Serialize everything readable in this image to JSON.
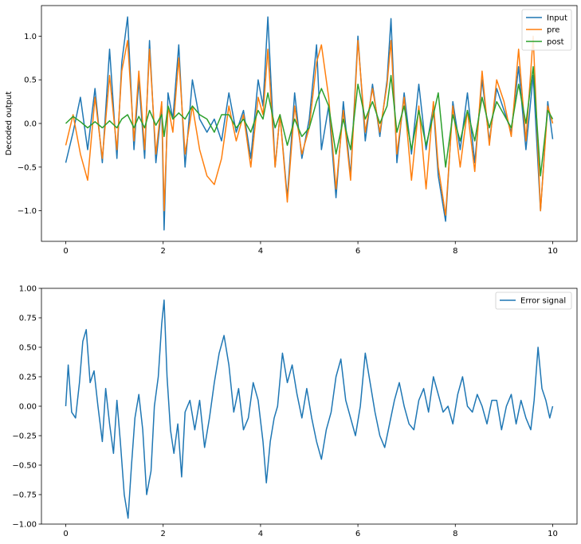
{
  "chart_data": [
    {
      "type": "line",
      "title": "",
      "xlabel": "",
      "ylabel": "Decoded output",
      "xlim": [
        -0.5,
        10.5
      ],
      "ylim": [
        -1.35,
        1.35
      ],
      "xticks": [
        0,
        2,
        4,
        6,
        8,
        10
      ],
      "yticks": [
        -1.0,
        -0.5,
        0.0,
        0.5,
        1.0
      ],
      "xticklabels": [
        "0",
        "2",
        "4",
        "6",
        "8",
        "10"
      ],
      "yticklabels": [
        "−1.0",
        "−0.5",
        "0.0",
        "0.5",
        "1.0"
      ],
      "grid": false,
      "legend_position": "upper right",
      "series": [
        {
          "name": "Input",
          "color": "#1f77b4",
          "x": [
            0,
            0.15,
            0.3,
            0.45,
            0.6,
            0.75,
            0.9,
            1.05,
            1.15,
            1.27,
            1.4,
            1.5,
            1.62,
            1.72,
            1.85,
            1.97,
            2.02,
            2.1,
            2.2,
            2.32,
            2.45,
            2.6,
            2.75,
            2.9,
            3.05,
            3.2,
            3.35,
            3.5,
            3.65,
            3.8,
            3.95,
            4.05,
            4.15,
            4.3,
            4.4,
            4.55,
            4.7,
            4.85,
            5.0,
            5.15,
            5.25,
            5.4,
            5.55,
            5.7,
            5.85,
            6.0,
            6.15,
            6.3,
            6.45,
            6.6,
            6.68,
            6.8,
            6.95,
            7.1,
            7.25,
            7.4,
            7.55,
            7.65,
            7.8,
            7.95,
            8.1,
            8.25,
            8.4,
            8.55,
            8.7,
            8.85,
            9.0,
            9.15,
            9.3,
            9.45,
            9.6,
            9.75,
            9.9,
            10.0
          ],
          "y": [
            -0.45,
            -0.1,
            0.3,
            -0.3,
            0.4,
            -0.45,
            0.85,
            -0.4,
            0.7,
            1.22,
            -0.3,
            0.5,
            -0.4,
            0.95,
            -0.45,
            0.2,
            -1.22,
            0.35,
            0.05,
            0.9,
            -0.5,
            0.5,
            0.05,
            -0.1,
            0.05,
            -0.2,
            0.35,
            -0.1,
            0.15,
            -0.4,
            0.5,
            0.2,
            1.22,
            -0.5,
            0.1,
            -0.85,
            0.35,
            -0.4,
            0.05,
            0.9,
            -0.3,
            0.2,
            -0.85,
            0.25,
            -0.6,
            1.0,
            -0.2,
            0.45,
            -0.15,
            0.5,
            1.2,
            -0.45,
            0.35,
            -0.35,
            0.45,
            -0.3,
            0.2,
            -0.6,
            -1.12,
            0.25,
            -0.3,
            0.35,
            -0.45,
            0.5,
            -0.2,
            0.4,
            0.15,
            -0.1,
            0.65,
            -0.3,
            0.55,
            -1.0,
            0.25,
            -0.18
          ]
        },
        {
          "name": "pre",
          "color": "#ff7f0e",
          "x": [
            0,
            0.15,
            0.3,
            0.45,
            0.6,
            0.75,
            0.9,
            1.05,
            1.15,
            1.27,
            1.4,
            1.5,
            1.62,
            1.72,
            1.85,
            1.97,
            2.02,
            2.1,
            2.2,
            2.32,
            2.45,
            2.6,
            2.75,
            2.9,
            3.05,
            3.2,
            3.35,
            3.5,
            3.65,
            3.8,
            3.95,
            4.05,
            4.15,
            4.3,
            4.4,
            4.55,
            4.7,
            4.85,
            5.0,
            5.15,
            5.25,
            5.4,
            5.55,
            5.7,
            5.85,
            6.0,
            6.15,
            6.3,
            6.45,
            6.6,
            6.68,
            6.8,
            6.95,
            7.1,
            7.25,
            7.4,
            7.55,
            7.65,
            7.8,
            7.95,
            8.1,
            8.25,
            8.4,
            8.55,
            8.7,
            8.85,
            9.0,
            9.15,
            9.3,
            9.45,
            9.6,
            9.75,
            9.9,
            10.0
          ],
          "y": [
            -0.25,
            0.1,
            -0.35,
            -0.65,
            0.3,
            -0.4,
            0.55,
            -0.3,
            0.6,
            0.95,
            -0.2,
            0.6,
            -0.3,
            0.85,
            -0.35,
            0.25,
            -1.0,
            0.2,
            -0.1,
            0.75,
            -0.35,
            0.2,
            -0.3,
            -0.6,
            -0.7,
            -0.4,
            0.2,
            -0.2,
            0.1,
            -0.5,
            0.3,
            0.1,
            0.85,
            -0.5,
            0.1,
            -0.9,
            0.2,
            -0.35,
            -0.05,
            0.7,
            0.9,
            0.3,
            -0.75,
            0.15,
            -0.65,
            0.95,
            -0.1,
            0.4,
            -0.1,
            0.45,
            0.95,
            -0.35,
            0.3,
            -0.65,
            0.2,
            -0.75,
            0.25,
            -0.5,
            -1.05,
            0.2,
            -0.5,
            0.15,
            -0.55,
            0.6,
            -0.25,
            0.5,
            0.25,
            -0.15,
            0.85,
            -0.2,
            1.0,
            -1.0,
            0.2,
            0.0
          ]
        },
        {
          "name": "post",
          "color": "#2ca02c",
          "x": [
            0,
            0.15,
            0.3,
            0.45,
            0.6,
            0.75,
            0.9,
            1.05,
            1.15,
            1.27,
            1.4,
            1.5,
            1.62,
            1.72,
            1.85,
            1.97,
            2.02,
            2.1,
            2.2,
            2.32,
            2.45,
            2.6,
            2.75,
            2.9,
            3.05,
            3.2,
            3.35,
            3.5,
            3.65,
            3.8,
            3.95,
            4.05,
            4.15,
            4.3,
            4.4,
            4.55,
            4.7,
            4.85,
            5.0,
            5.15,
            5.25,
            5.4,
            5.55,
            5.7,
            5.85,
            6.0,
            6.15,
            6.3,
            6.45,
            6.6,
            6.68,
            6.8,
            6.95,
            7.1,
            7.25,
            7.4,
            7.55,
            7.65,
            7.8,
            7.95,
            8.1,
            8.25,
            8.4,
            8.55,
            8.7,
            8.85,
            9.0,
            9.15,
            9.3,
            9.45,
            9.6,
            9.75,
            9.9,
            10.0
          ],
          "y": [
            0.0,
            0.08,
            0.02,
            -0.05,
            0.02,
            -0.05,
            0.03,
            -0.05,
            0.05,
            0.1,
            -0.05,
            0.08,
            -0.05,
            0.15,
            -0.02,
            0.1,
            -0.15,
            0.2,
            0.05,
            0.12,
            0.05,
            0.2,
            0.1,
            0.05,
            -0.1,
            0.1,
            0.1,
            -0.05,
            0.05,
            -0.1,
            0.15,
            0.05,
            0.35,
            -0.05,
            0.1,
            -0.25,
            0.05,
            -0.15,
            -0.05,
            0.25,
            0.4,
            0.2,
            -0.35,
            0.05,
            -0.3,
            0.45,
            0.05,
            0.25,
            0.0,
            0.2,
            0.55,
            -0.1,
            0.2,
            -0.3,
            0.15,
            -0.25,
            0.1,
            0.35,
            -0.5,
            0.1,
            -0.2,
            0.15,
            -0.2,
            0.3,
            -0.05,
            0.25,
            0.1,
            -0.05,
            0.45,
            0.0,
            0.65,
            -0.6,
            0.15,
            0.05
          ]
        }
      ]
    },
    {
      "type": "line",
      "title": "",
      "xlabel": "",
      "ylabel": "",
      "xlim": [
        -0.5,
        10.5
      ],
      "ylim": [
        -1.0,
        1.0
      ],
      "xticks": [
        0,
        2,
        4,
        6,
        8,
        10
      ],
      "yticks": [
        -1.0,
        -0.75,
        -0.5,
        -0.25,
        0.0,
        0.25,
        0.5,
        0.75,
        1.0
      ],
      "xticklabels": [
        "0",
        "2",
        "4",
        "6",
        "8",
        "10"
      ],
      "yticklabels": [
        "−1.00",
        "−0.75",
        "−0.50",
        "−0.25",
        "0.00",
        "0.25",
        "0.50",
        "0.75",
        "1.00"
      ],
      "grid": false,
      "legend_position": "upper right",
      "series": [
        {
          "name": "Error signal",
          "color": "#1f77b4",
          "x": [
            0,
            0.05,
            0.12,
            0.2,
            0.28,
            0.35,
            0.42,
            0.5,
            0.58,
            0.66,
            0.75,
            0.82,
            0.9,
            0.98,
            1.05,
            1.12,
            1.2,
            1.28,
            1.35,
            1.42,
            1.5,
            1.58,
            1.66,
            1.75,
            1.82,
            1.9,
            1.97,
            2.02,
            2.08,
            2.15,
            2.22,
            2.3,
            2.38,
            2.45,
            2.55,
            2.65,
            2.75,
            2.85,
            2.95,
            3.05,
            3.15,
            3.25,
            3.35,
            3.45,
            3.55,
            3.65,
            3.75,
            3.85,
            3.95,
            4.05,
            4.12,
            4.2,
            4.28,
            4.35,
            4.45,
            4.55,
            4.65,
            4.75,
            4.85,
            4.95,
            5.05,
            5.15,
            5.25,
            5.35,
            5.45,
            5.55,
            5.65,
            5.75,
            5.85,
            5.95,
            6.05,
            6.15,
            6.25,
            6.35,
            6.45,
            6.55,
            6.65,
            6.75,
            6.85,
            6.95,
            7.05,
            7.15,
            7.25,
            7.35,
            7.45,
            7.55,
            7.65,
            7.75,
            7.85,
            7.95,
            8.05,
            8.15,
            8.25,
            8.35,
            8.45,
            8.55,
            8.65,
            8.75,
            8.85,
            8.95,
            9.05,
            9.15,
            9.25,
            9.35,
            9.45,
            9.55,
            9.62,
            9.7,
            9.78,
            9.86,
            9.94,
            10.0
          ],
          "y": [
            0.0,
            0.35,
            -0.05,
            -0.1,
            0.2,
            0.55,
            0.65,
            0.2,
            0.3,
            0.0,
            -0.3,
            0.15,
            -0.15,
            -0.4,
            0.05,
            -0.3,
            -0.75,
            -0.95,
            -0.5,
            -0.1,
            0.1,
            -0.2,
            -0.75,
            -0.55,
            0.0,
            0.25,
            0.7,
            0.9,
            0.25,
            -0.2,
            -0.4,
            -0.15,
            -0.6,
            -0.05,
            0.05,
            -0.2,
            0.05,
            -0.35,
            -0.1,
            0.2,
            0.45,
            0.6,
            0.35,
            -0.05,
            0.15,
            -0.2,
            -0.1,
            0.2,
            0.05,
            -0.3,
            -0.65,
            -0.3,
            -0.1,
            0.0,
            0.45,
            0.2,
            0.35,
            0.1,
            -0.1,
            0.15,
            -0.1,
            -0.3,
            -0.45,
            -0.2,
            -0.05,
            0.25,
            0.4,
            0.05,
            -0.1,
            -0.25,
            0.0,
            0.45,
            0.2,
            -0.05,
            -0.25,
            -0.35,
            -0.15,
            0.05,
            0.2,
            0.0,
            -0.15,
            -0.2,
            0.05,
            0.15,
            -0.05,
            0.25,
            0.1,
            -0.05,
            0.0,
            -0.15,
            0.1,
            0.25,
            0.0,
            -0.05,
            0.1,
            0.0,
            -0.15,
            0.05,
            0.05,
            -0.2,
            0.0,
            0.1,
            -0.15,
            0.05,
            -0.1,
            -0.2,
            0.05,
            0.5,
            0.15,
            0.05,
            -0.1,
            0.0
          ]
        }
      ]
    }
  ]
}
